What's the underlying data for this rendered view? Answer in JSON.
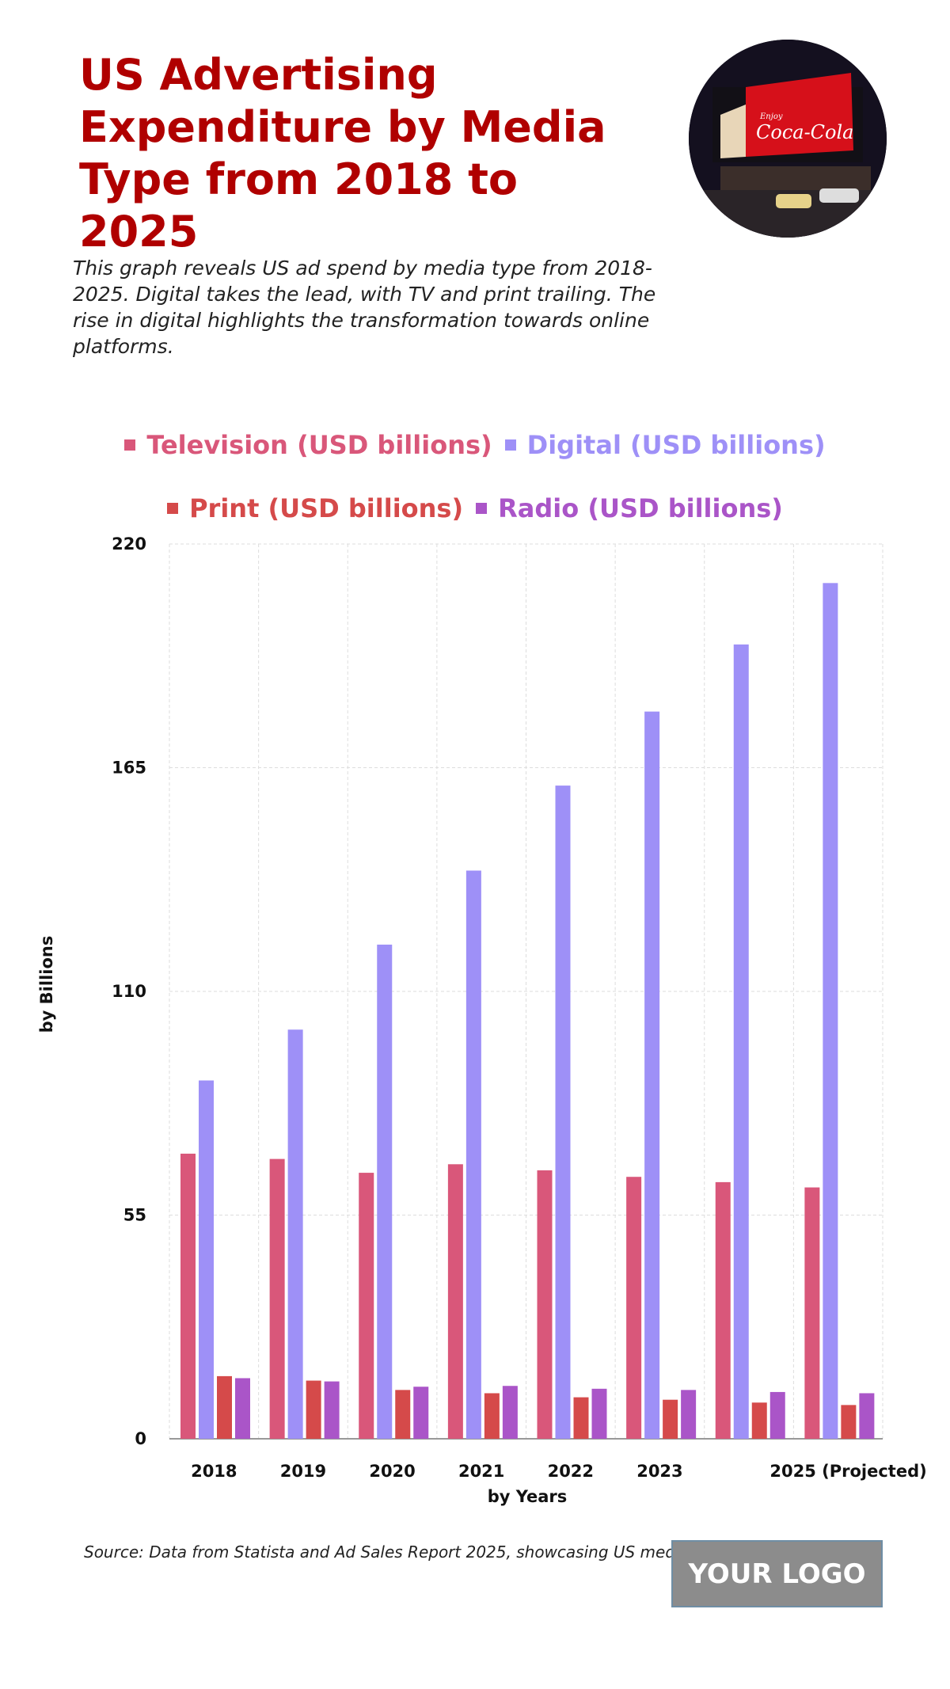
{
  "header": {
    "title": "US Advertising Expenditure by Media Type from 2018 to 2025",
    "subtitle": "This graph reveals US ad spend by media type from 2018-2025. Digital takes the lead, with TV and print trailing. The rise in digital highlights the transformation towards online platforms.",
    "photo_text": "Enjoy Coca-Cola"
  },
  "footer": {
    "source": "Source: Data from Statista and Ad Sales Report 2025, showcasing US media ad spending trends.",
    "logo": "YOUR LOGO"
  },
  "chart_data": {
    "type": "bar",
    "title": "",
    "xlabel": "by Years",
    "ylabel": "by Billions",
    "ylim": [
      0,
      220
    ],
    "yticks": [
      0,
      55,
      110,
      165,
      220
    ],
    "grid": true,
    "legend_position": "top",
    "categories": [
      "2018",
      "2019",
      "2020",
      "2021",
      "2022",
      "2023",
      "",
      "2025 (Projected)"
    ],
    "series": [
      {
        "name": "Television (USD billions)",
        "color": "#d9577a",
        "values": [
          70.1,
          68.8,
          65.4,
          67.5,
          66.0,
          64.4,
          63.1,
          61.8
        ]
      },
      {
        "name": "Digital (USD billions)",
        "color": "#9e90f7",
        "values": [
          88.1,
          100.6,
          121.5,
          139.7,
          160.6,
          178.8,
          195.3,
          210.4
        ]
      },
      {
        "name": "Print (USD billions)",
        "color": "#d54a4a",
        "values": [
          15.4,
          14.3,
          12.0,
          11.2,
          10.2,
          9.6,
          8.9,
          8.3
        ]
      },
      {
        "name": "Radio (USD billions)",
        "color": "#aa55c8",
        "values": [
          14.9,
          14.1,
          12.8,
          13.0,
          12.3,
          12.0,
          11.5,
          11.2
        ]
      }
    ]
  }
}
